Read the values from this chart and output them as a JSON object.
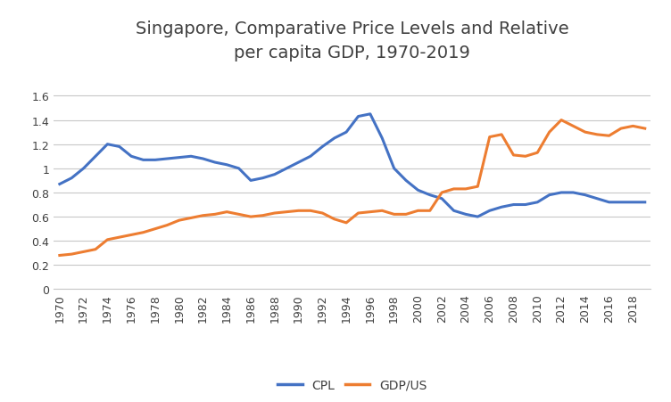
{
  "title": "Singapore, Comparative Price Levels and Relative\nper capita GDP, 1970-2019",
  "years": [
    1970,
    1971,
    1972,
    1973,
    1974,
    1975,
    1976,
    1977,
    1978,
    1979,
    1980,
    1981,
    1982,
    1983,
    1984,
    1985,
    1986,
    1987,
    1988,
    1989,
    1990,
    1991,
    1992,
    1993,
    1994,
    1995,
    1996,
    1997,
    1998,
    1999,
    2000,
    2001,
    2002,
    2003,
    2004,
    2005,
    2006,
    2007,
    2008,
    2009,
    2010,
    2011,
    2012,
    2013,
    2014,
    2015,
    2016,
    2017,
    2018,
    2019
  ],
  "CPL": [
    0.87,
    0.92,
    1.0,
    1.1,
    1.2,
    1.18,
    1.1,
    1.07,
    1.07,
    1.08,
    1.09,
    1.1,
    1.08,
    1.05,
    1.03,
    1.0,
    0.9,
    0.92,
    0.95,
    1.0,
    1.05,
    1.1,
    1.18,
    1.25,
    1.3,
    1.43,
    1.45,
    1.25,
    1.0,
    0.9,
    0.82,
    0.78,
    0.75,
    0.65,
    0.62,
    0.6,
    0.65,
    0.68,
    0.7,
    0.7,
    0.72,
    0.78,
    0.8,
    0.8,
    0.78,
    0.75,
    0.72,
    0.72,
    0.72,
    0.72
  ],
  "GDP_US": [
    0.28,
    0.29,
    0.31,
    0.33,
    0.41,
    0.43,
    0.45,
    0.47,
    0.5,
    0.53,
    0.57,
    0.59,
    0.61,
    0.62,
    0.64,
    0.62,
    0.6,
    0.61,
    0.63,
    0.64,
    0.65,
    0.65,
    0.63,
    0.58,
    0.55,
    0.63,
    0.64,
    0.65,
    0.62,
    0.62,
    0.65,
    0.65,
    0.8,
    0.83,
    0.83,
    0.85,
    1.26,
    1.28,
    1.11,
    1.1,
    1.13,
    1.3,
    1.4,
    1.35,
    1.3,
    1.28,
    1.27,
    1.33,
    1.35,
    1.33
  ],
  "cpl_color": "#4472C4",
  "gdp_color": "#ED7D31",
  "ylim": [
    0,
    1.8
  ],
  "yticks": [
    0,
    0.2,
    0.4,
    0.6,
    0.8,
    1.0,
    1.2,
    1.4,
    1.6
  ],
  "ytick_labels": [
    "0",
    "0.2",
    "0.4",
    "0.6",
    "0.8",
    "1",
    "1.2",
    "1.4",
    "1.6"
  ],
  "xticks": [
    1970,
    1972,
    1974,
    1976,
    1978,
    1980,
    1982,
    1984,
    1986,
    1988,
    1990,
    1992,
    1994,
    1996,
    1998,
    2000,
    2002,
    2004,
    2006,
    2008,
    2010,
    2012,
    2014,
    2016,
    2018
  ],
  "legend_labels": [
    "CPL",
    "GDP/US"
  ],
  "background_color": "#ffffff",
  "grid_color": "#c8c8c8",
  "title_color": "#404040",
  "title_fontsize": 14,
  "tick_label_color": "#404040",
  "tick_fontsize": 9,
  "line_width": 2.2
}
